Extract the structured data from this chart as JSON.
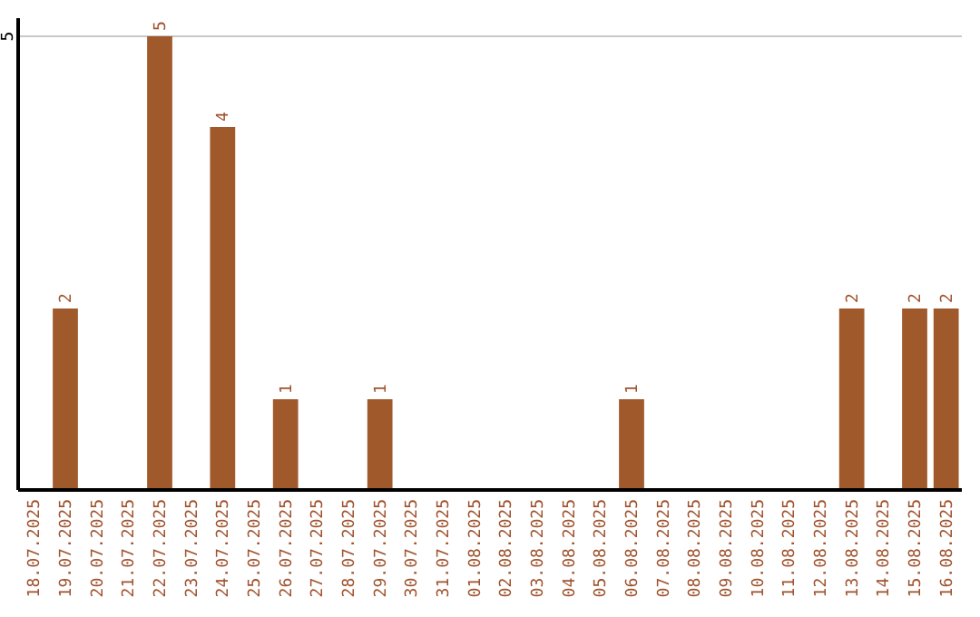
{
  "chart_data": {
    "type": "bar",
    "categories": [
      "18.07.2025",
      "19.07.2025",
      "20.07.2025",
      "21.07.2025",
      "22.07.2025",
      "23.07.2025",
      "24.07.2025",
      "25.07.2025",
      "26.07.2025",
      "27.07.2025",
      "28.07.2025",
      "29.07.2025",
      "30.07.2025",
      "31.07.2025",
      "01.08.2025",
      "02.08.2025",
      "03.08.2025",
      "04.08.2025",
      "05.08.2025",
      "06.08.2025",
      "07.08.2025",
      "08.08.2025",
      "09.08.2025",
      "10.08.2025",
      "11.08.2025",
      "12.08.2025",
      "13.08.2025",
      "14.08.2025",
      "15.08.2025",
      "16.08.2025"
    ],
    "values": [
      0,
      2,
      0,
      0,
      5,
      0,
      4,
      0,
      1,
      0,
      0,
      1,
      0,
      0,
      0,
      0,
      0,
      0,
      0,
      1,
      0,
      0,
      0,
      0,
      0,
      0,
      2,
      0,
      2,
      2
    ],
    "value_labels": [
      null,
      "2",
      null,
      null,
      "5",
      null,
      "4",
      null,
      "1",
      null,
      null,
      "1",
      null,
      null,
      null,
      null,
      null,
      null,
      null,
      "1",
      null,
      null,
      null,
      null,
      null,
      null,
      "2",
      null,
      "2",
      "2"
    ],
    "color": "#a0592b",
    "ylim": [
      0,
      5.2
    ],
    "yticks": [
      5
    ],
    "grid": "y"
  }
}
